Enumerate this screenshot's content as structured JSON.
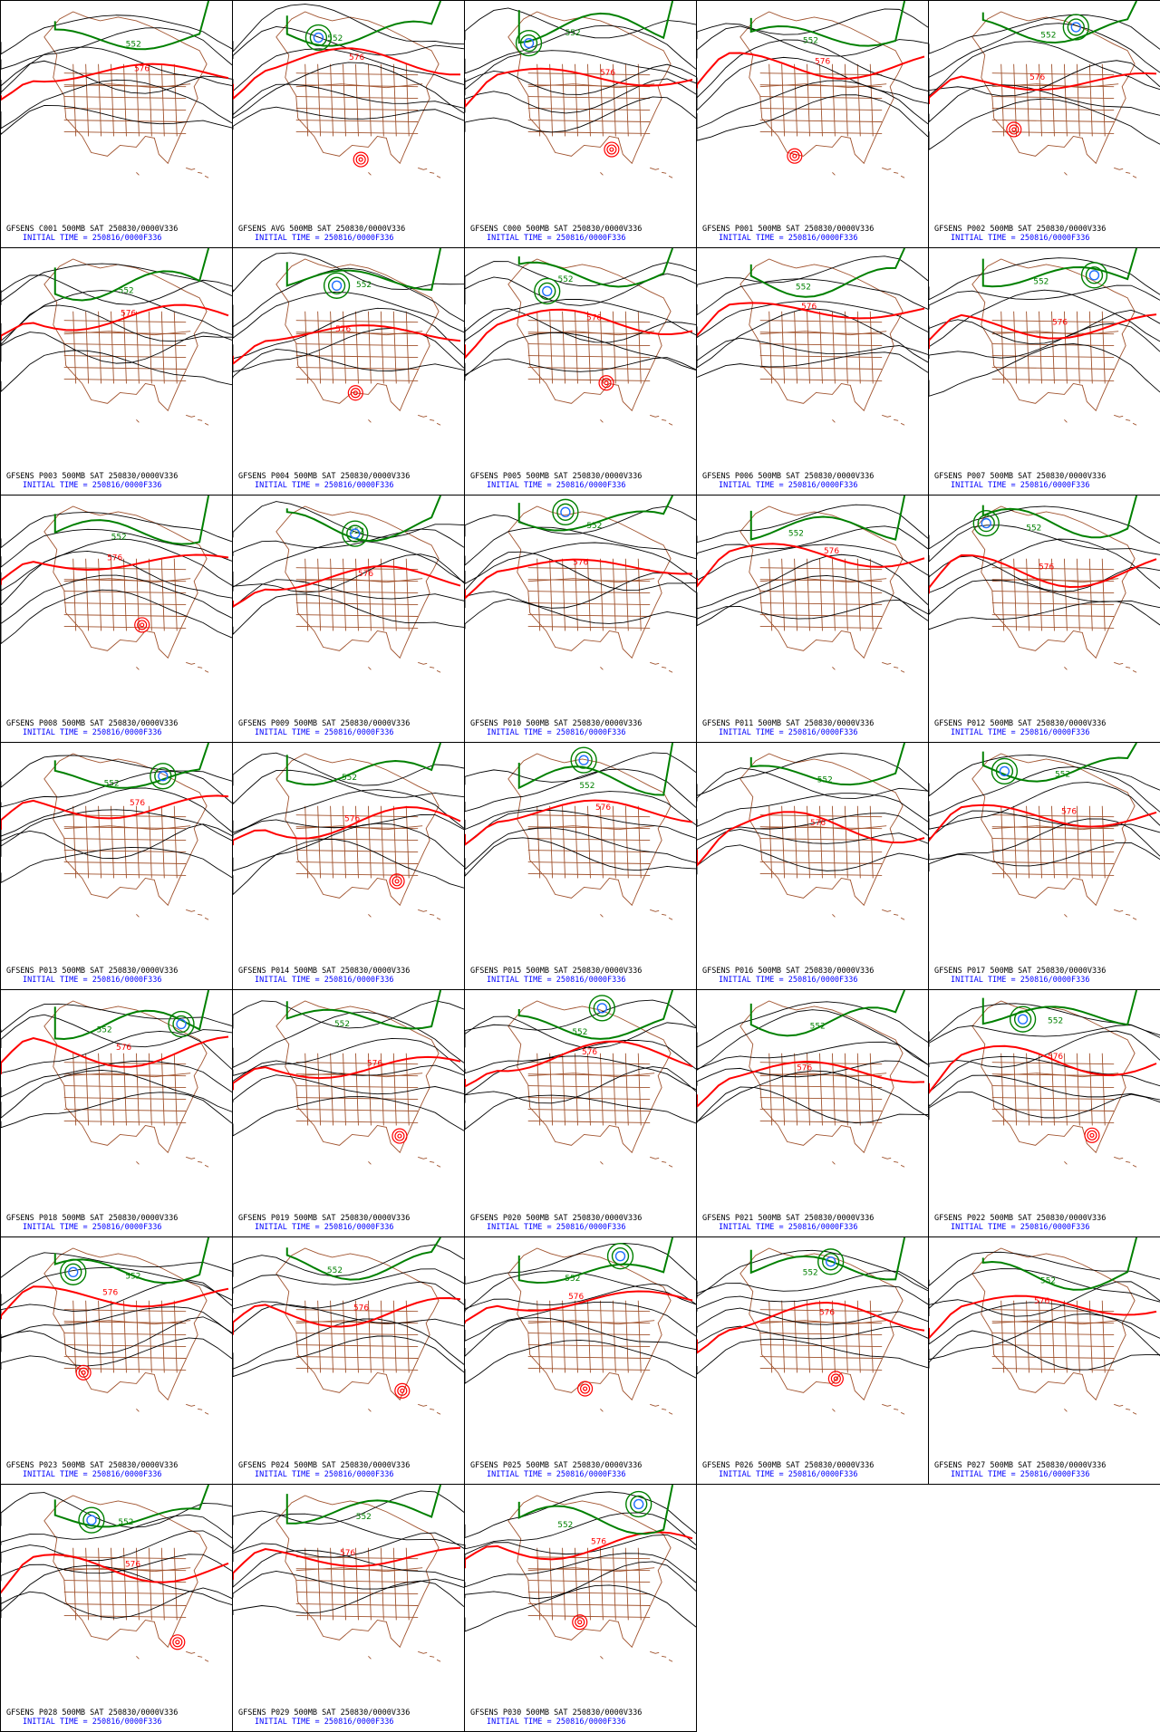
{
  "colors": {
    "contour": "#000000",
    "ridge_576": "#ff0000",
    "trough_552": "#008000",
    "low_center": "#1e6fff",
    "map_borders": "#a0522d",
    "caption_top": "#000000",
    "caption_bottom": "#0000ff"
  },
  "contour_labels": {
    "red": "576",
    "green": "552"
  },
  "panels": [
    {
      "run": "C001",
      "line1": "GFSENS C001 500MB SAT 250830/0000V336",
      "line2": "INITIAL TIME = 250816/0000F336"
    },
    {
      "run": "AVG",
      "line1": "GFSENS AVG 500MB SAT 250830/0000V336",
      "line2": "INITIAL TIME = 250816/0000F336"
    },
    {
      "run": "C000",
      "line1": "GFSENS C000 500MB SAT 250830/0000V336",
      "line2": "INITIAL TIME = 250816/0000F336"
    },
    {
      "run": "P001",
      "line1": "GFSENS P001 500MB SAT 250830/0000V336",
      "line2": "INITIAL TIME = 250816/0000F336"
    },
    {
      "run": "P002",
      "line1": "GFSENS P002 500MB SAT 250830/0000V336",
      "line2": "INITIAL TIME = 250816/0000F336"
    },
    {
      "run": "P003",
      "line1": "GFSENS P003 500MB SAT 250830/0000V336",
      "line2": "INITIAL TIME = 250816/0000F336"
    },
    {
      "run": "P004",
      "line1": "GFSENS P004 500MB SAT 250830/0000V336",
      "line2": "INITIAL TIME = 250816/0000F336"
    },
    {
      "run": "P005",
      "line1": "GFSENS P005 500MB SAT 250830/0000V336",
      "line2": "INITIAL TIME = 250816/0000F336"
    },
    {
      "run": "P006",
      "line1": "GFSENS P006 500MB SAT 250830/0000V336",
      "line2": "INITIAL TIME = 250816/0000F336"
    },
    {
      "run": "P007",
      "line1": "GFSENS P007 500MB SAT 250830/0000V336",
      "line2": "INITIAL TIME = 250816/0000F336"
    },
    {
      "run": "P008",
      "line1": "GFSENS P008 500MB SAT 250830/0000V336",
      "line2": "INITIAL TIME = 250816/0000F336"
    },
    {
      "run": "P009",
      "line1": "GFSENS P009 500MB SAT 250830/0000V336",
      "line2": "INITIAL TIME = 250816/0000F336"
    },
    {
      "run": "P010",
      "line1": "GFSENS P010 500MB SAT 250830/0000V336",
      "line2": "INITIAL TIME = 250816/0000F336"
    },
    {
      "run": "P011",
      "line1": "GFSENS P011 500MB SAT 250830/0000V336",
      "line2": "INITIAL TIME = 250816/0000F336"
    },
    {
      "run": "P012",
      "line1": "GFSENS P012 500MB SAT 250830/0000V336",
      "line2": "INITIAL TIME = 250816/0000F336"
    },
    {
      "run": "P013",
      "line1": "GFSENS P013 500MB SAT 250830/0000V336",
      "line2": "INITIAL TIME = 250816/0000F336"
    },
    {
      "run": "P014",
      "line1": "GFSENS P014 500MB SAT 250830/0000V336",
      "line2": "INITIAL TIME = 250816/0000F336"
    },
    {
      "run": "P015",
      "line1": "GFSENS P015 500MB SAT 250830/0000V336",
      "line2": "INITIAL TIME = 250816/0000F336"
    },
    {
      "run": "P016",
      "line1": "GFSENS P016 500MB SAT 250830/0000V336",
      "line2": "INITIAL TIME = 250816/0000F336"
    },
    {
      "run": "P017",
      "line1": "GFSENS P017 500MB SAT 250830/0000V336",
      "line2": "INITIAL TIME = 250816/0000F336"
    },
    {
      "run": "P018",
      "line1": "GFSENS P018 500MB SAT 250830/0000V336",
      "line2": "INITIAL TIME = 250816/0000F336"
    },
    {
      "run": "P019",
      "line1": "GFSENS P019 500MB SAT 250830/0000V336",
      "line2": "INITIAL TIME = 250816/0000F336"
    },
    {
      "run": "P020",
      "line1": "GFSENS P020 500MB SAT 250830/0000V336",
      "line2": "INITIAL TIME = 250816/0000F336"
    },
    {
      "run": "P021",
      "line1": "GFSENS P021 500MB SAT 250830/0000V336",
      "line2": "INITIAL TIME = 250816/0000F336"
    },
    {
      "run": "P022",
      "line1": "GFSENS P022 500MB SAT 250830/0000V336",
      "line2": "INITIAL TIME = 250816/0000F336"
    },
    {
      "run": "P023",
      "line1": "GFSENS P023 500MB SAT 250830/0000V336",
      "line2": "INITIAL TIME = 250816/0000F336"
    },
    {
      "run": "P024",
      "line1": "GFSENS P024 500MB SAT 250830/0000V336",
      "line2": "INITIAL TIME = 250816/0000F336"
    },
    {
      "run": "P025",
      "line1": "GFSENS P025 500MB SAT 250830/0000V336",
      "line2": "INITIAL TIME = 250816/0000F336"
    },
    {
      "run": "P026",
      "line1": "GFSENS P026 500MB SAT 250830/0000V336",
      "line2": "INITIAL TIME = 250816/0000F336"
    },
    {
      "run": "P027",
      "line1": "GFSENS P027 500MB SAT 250830/0000V336",
      "line2": "INITIAL TIME = 250816/0000F336"
    },
    {
      "run": "P028",
      "line1": "GFSENS P028 500MB SAT 250830/0000V336",
      "line2": "INITIAL TIME = 250816/0000F336"
    },
    {
      "run": "P029",
      "line1": "GFSENS P029 500MB SAT 250830/0000V336",
      "line2": "INITIAL TIME = 250816/0000F336"
    },
    {
      "run": "P030",
      "line1": "GFSENS P030 500MB SAT 250830/0000V336",
      "line2": "INITIAL TIME = 250816/0000F336"
    }
  ]
}
